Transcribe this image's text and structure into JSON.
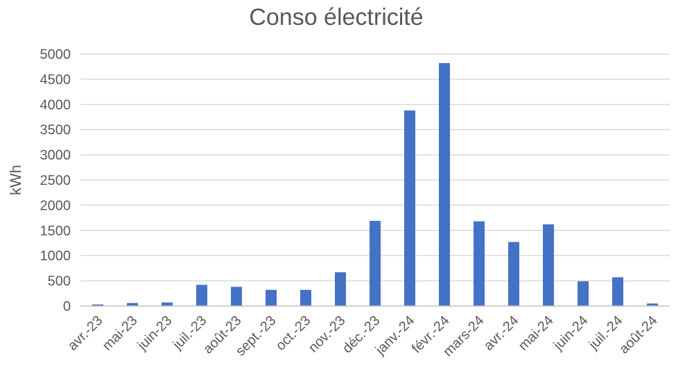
{
  "chart_data": {
    "type": "bar",
    "title": "Conso électricité",
    "xlabel": "",
    "ylabel": "kWh",
    "categories": [
      "avr.-23",
      "mai-23",
      "juin-23",
      "juil.-23",
      "août-23",
      "sept.-23",
      "oct.-23",
      "nov.-23",
      "déc.-23",
      "janv.-24",
      "févr.-24",
      "mars-24",
      "avr.-24",
      "mai-24",
      "juin-24",
      "juil.-24",
      "août-24"
    ],
    "values": [
      30,
      60,
      70,
      420,
      380,
      320,
      320,
      670,
      1690,
      3880,
      4820,
      1680,
      1270,
      1620,
      490,
      570,
      50
    ],
    "ylim": [
      0,
      5000
    ],
    "yticks": [
      0,
      500,
      1000,
      1500,
      2000,
      2500,
      3000,
      3500,
      4000,
      4500,
      5000
    ],
    "grid": true,
    "colors": {
      "bar": "#4472C4",
      "grid": "#d9d9d9",
      "text": "#595959"
    }
  }
}
